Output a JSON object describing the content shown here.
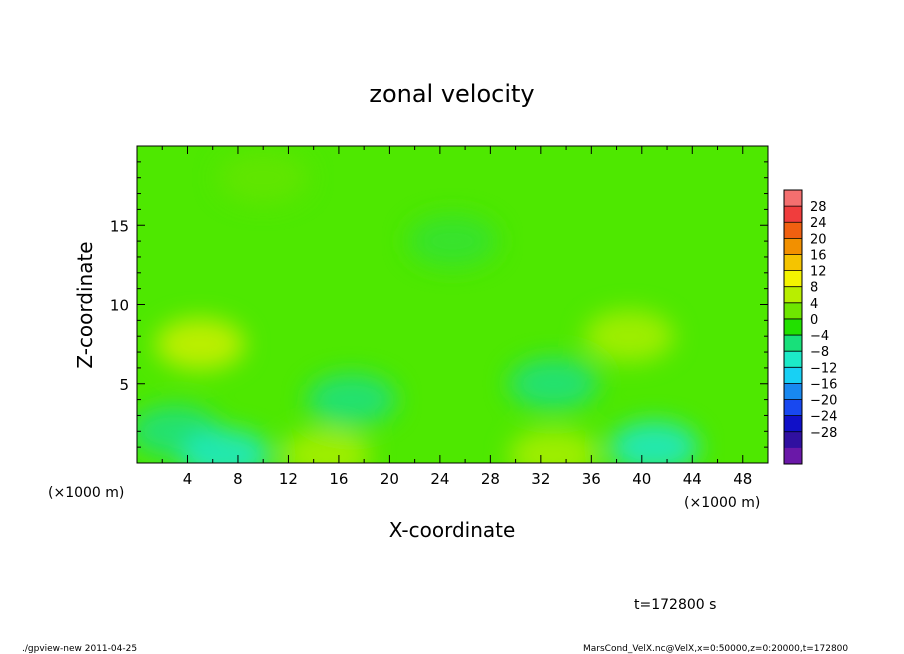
{
  "chart_data": {
    "type": "heatmap",
    "title": "zonal velocity",
    "xlabel": "X-coordinate",
    "ylabel": "Z-coordinate",
    "x_unit_left": "(×1000 m)",
    "x_unit_right": "(×1000 m)",
    "xlim": [
      0,
      50
    ],
    "ylim": [
      0,
      20
    ],
    "xticks": [
      "4",
      "8",
      "12",
      "16",
      "20",
      "24",
      "28",
      "32",
      "36",
      "40",
      "44",
      "48"
    ],
    "xtick_values": [
      4,
      8,
      12,
      16,
      20,
      24,
      28,
      32,
      36,
      40,
      44,
      48
    ],
    "yticks": [
      "5",
      "10",
      "15"
    ],
    "ytick_values": [
      5,
      10,
      15
    ],
    "colorbar": {
      "levels": [
        "28",
        "24",
        "20",
        "16",
        "12",
        "8",
        "4",
        "0",
        "−4",
        "−8",
        "−12",
        "−16",
        "−20",
        "−24",
        "−28"
      ],
      "colors": [
        "#f46f6f",
        "#f03d3d",
        "#f06010",
        "#f29000",
        "#f5c400",
        "#f4f400",
        "#b8ee00",
        "#6ee600",
        "#22e000",
        "#18e07a",
        "#1ceac8",
        "#18d0f4",
        "#1888f0",
        "#1848f0",
        "#1010c8",
        "#3010a0",
        "#6a18a8"
      ]
    },
    "field_samples": [
      {
        "x": 5,
        "z": 7.5,
        "value": 6
      },
      {
        "x": 3,
        "z": 2,
        "value": -6
      },
      {
        "x": 7,
        "z": 0.5,
        "value": -8
      },
      {
        "x": 15,
        "z": 0.5,
        "value": 4
      },
      {
        "x": 17,
        "z": 4,
        "value": -5
      },
      {
        "x": 33,
        "z": 0.5,
        "value": 5
      },
      {
        "x": 33,
        "z": 5,
        "value": -6
      },
      {
        "x": 39,
        "z": 8,
        "value": 4
      },
      {
        "x": 41,
        "z": 1,
        "value": -8
      },
      {
        "x": 25,
        "z": 14,
        "value": -2
      },
      {
        "x": 10,
        "z": 18,
        "value": 1
      }
    ]
  },
  "annotation_time": "t=172800 s",
  "footer_left": "./gpview-new  2011-04-25",
  "footer_right": "MarsCond_VelX.nc@VelX,x=0:50000,z=0:20000,t=172800"
}
